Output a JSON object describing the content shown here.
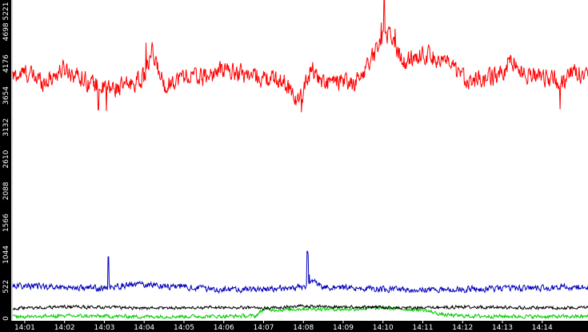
{
  "chart_data": {
    "type": "line",
    "title": "",
    "xlabel": "",
    "ylabel": "",
    "grid": false,
    "legend": "none",
    "colors": {
      "background": "#ffffff",
      "axis_bars": "#000000",
      "axis_text": "#ffffff",
      "axis_line": "#aaaaaa",
      "minor_tick": "#888888"
    },
    "ylim": [
      0,
      5221
    ],
    "y_ticks": [
      "0",
      "522",
      "1044",
      "1566",
      "2088",
      "2610",
      "3132",
      "3654",
      "4176",
      "4698",
      "5221"
    ],
    "x_range_minutes": [
      0.7,
      15.15
    ],
    "x_ticks": [
      {
        "label": "14:01",
        "minute": 1
      },
      {
        "label": "14:02",
        "minute": 2
      },
      {
        "label": "14:03",
        "minute": 3
      },
      {
        "label": "14:04",
        "minute": 4
      },
      {
        "label": "14:05",
        "minute": 5
      },
      {
        "label": "14:06",
        "minute": 6
      },
      {
        "label": "14:07",
        "minute": 7
      },
      {
        "label": "14:08",
        "minute": 8
      },
      {
        "label": "14:09",
        "minute": 9
      },
      {
        "label": "14:10",
        "minute": 10
      },
      {
        "label": "14:11",
        "minute": 11
      },
      {
        "label": "14:12",
        "minute": 12
      },
      {
        "label": "14:13",
        "minute": 13
      },
      {
        "label": "14:14",
        "minute": 14
      }
    ],
    "series": [
      {
        "color": "#ff0000",
        "x": [
          0.7,
          1.0,
          1.5,
          2.0,
          2.5,
          3.0,
          3.5,
          4.0,
          4.2,
          4.5,
          5.0,
          5.5,
          6.0,
          6.5,
          7.0,
          7.5,
          7.9,
          8.2,
          8.5,
          9.0,
          9.3,
          9.5,
          9.8,
          10.0,
          10.2,
          10.5,
          11.0,
          11.5,
          12.0,
          12.5,
          13.0,
          13.2,
          13.5,
          14.0,
          14.5,
          14.8,
          15.15
        ],
        "values": [
          3950,
          4030,
          3880,
          4100,
          3920,
          3760,
          3800,
          3950,
          4350,
          3820,
          3980,
          3950,
          4080,
          4020,
          3930,
          3900,
          3540,
          4120,
          3850,
          3880,
          3830,
          4050,
          4350,
          4700,
          4650,
          4180,
          4350,
          4230,
          3950,
          3900,
          4000,
          4280,
          4010,
          3990,
          3850,
          4050,
          4020
        ],
        "noise": 150,
        "spikes": [
          {
            "minute": 10.03,
            "value": 5221
          },
          {
            "minute": 9.95,
            "value": 4850
          },
          {
            "minute": 10.3,
            "value": 4750
          },
          {
            "minute": 4.05,
            "value": 4520
          },
          {
            "minute": 7.95,
            "value": 3380
          },
          {
            "minute": 2.85,
            "value": 3420
          },
          {
            "minute": 3.05,
            "value": 3400
          },
          {
            "minute": 14.45,
            "value": 3430
          }
        ]
      },
      {
        "color": "#0000bb",
        "x": [
          0.7,
          3.0,
          3.3,
          4.0,
          6.0,
          7.0,
          8.0,
          8.2,
          8.5,
          9.0,
          10.0,
          11.0,
          12.0,
          13.0,
          14.0,
          15.15
        ],
        "values": [
          540,
          490,
          530,
          560,
          470,
          480,
          510,
          620,
          520,
          500,
          480,
          470,
          480,
          490,
          500,
          520
        ],
        "noise": 50,
        "spikes": [
          {
            "minute": 3.1,
            "value": 1010
          },
          {
            "minute": 8.1,
            "value": 1100
          },
          {
            "minute": 8.12,
            "value": 1050
          },
          {
            "minute": 8.15,
            "value": 720
          }
        ]
      },
      {
        "color": "#000000",
        "x": [
          0.7,
          2.0,
          4.0,
          6.0,
          7.0,
          8.0,
          9.0,
          10.0,
          11.0,
          12.0,
          13.0,
          14.0,
          15.15
        ],
        "values": [
          160,
          190,
          170,
          180,
          170,
          200,
          190,
          180,
          170,
          190,
          180,
          170,
          180
        ],
        "noise": 25,
        "spikes": []
      },
      {
        "color": "#00cc00",
        "x": [
          0.7,
          2.0,
          4.0,
          6.0,
          6.8,
          7.0,
          7.5,
          8.0,
          9.0,
          10.0,
          11.0,
          11.5,
          12.0,
          13.0,
          14.0,
          15.15
        ],
        "values": [
          30,
          40,
          30,
          35,
          40,
          150,
          140,
          160,
          150,
          170,
          140,
          60,
          40,
          35,
          30,
          30
        ],
        "noise": 30,
        "spikes": []
      }
    ]
  }
}
